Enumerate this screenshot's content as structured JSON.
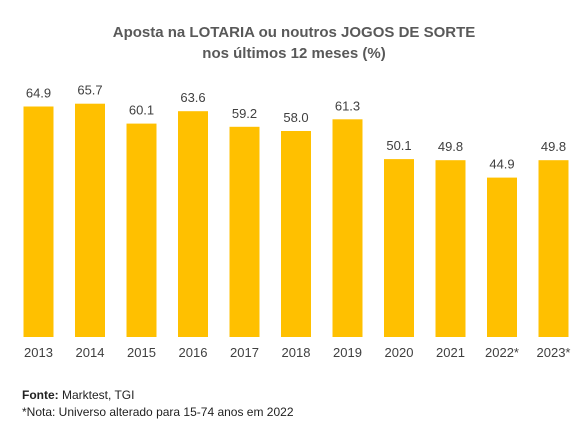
{
  "chart_data": {
    "type": "bar",
    "title_line1": "Aposta na LOTARIA ou noutros JOGOS DE SORTE",
    "title_line2": "nos últimos 12 meses (%)",
    "categories": [
      "2013",
      "2014",
      "2015",
      "2016",
      "2017",
      "2018",
      "2019",
      "2020",
      "2021",
      "2022*",
      "2023*"
    ],
    "values": [
      64.9,
      65.7,
      60.1,
      63.6,
      59.2,
      58.0,
      61.3,
      50.1,
      49.8,
      44.9,
      49.8
    ],
    "value_labels": [
      "64.9",
      "65.7",
      "60.1",
      "63.6",
      "59.2",
      "58.0",
      "61.3",
      "50.1",
      "49.8",
      "44.9",
      "49.8"
    ],
    "ylim": [
      0,
      70
    ],
    "grid": false,
    "bar_color": "#FFC000"
  },
  "footer": {
    "source_label": "Fonte:",
    "source_text": "Marktest, TGI",
    "note": "*Nota: Universo alterado para 15-74 anos em 2022"
  }
}
